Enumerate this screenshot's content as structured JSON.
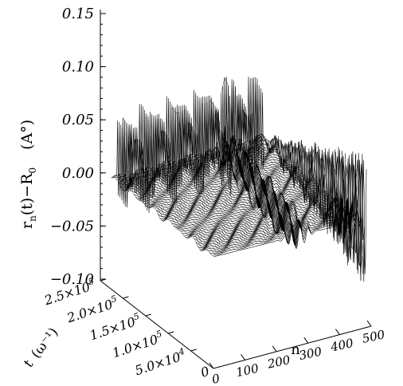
{
  "chart_data": {
    "type": "surface",
    "zlabel": {
      "main": "r",
      "sub": "n",
      "mid": "(t)−R",
      "sub2": "0",
      "unit": "(A°)"
    },
    "xlabel": "n",
    "ylabel": {
      "main": "t",
      "unit": "(ω⁻¹)"
    },
    "z_ticks": [
      "0.15",
      "0.10",
      "0.05",
      "0.00",
      "−0.05",
      "−0.10"
    ],
    "z_tick_values": [
      0.15,
      0.1,
      0.05,
      0.0,
      -0.05,
      -0.1
    ],
    "zlim": [
      -0.1,
      0.15
    ],
    "y_ticks": [
      "2.5×10",
      "2.0×10",
      "1.5×10",
      "1.0×10",
      "5.0×10"
    ],
    "y_tick_exponents": [
      "5",
      "5",
      "5",
      "5",
      "4"
    ],
    "y_tick_values": [
      250000,
      200000,
      150000,
      100000,
      50000
    ],
    "y_zero_label": "0",
    "x_ticks": [
      "0",
      "100",
      "200",
      "300",
      "400",
      "500"
    ],
    "x_tick_values": [
      0,
      100,
      200,
      300,
      400,
      500
    ],
    "xlim": [
      0,
      500
    ],
    "ylim": [
      0,
      250000
    ],
    "grid": false
  }
}
